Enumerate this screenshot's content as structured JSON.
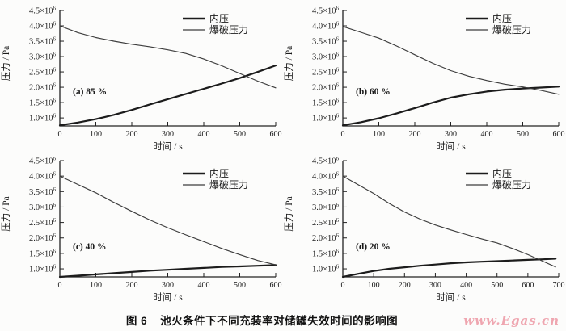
{
  "figure": {
    "background": "#fcfcfb"
  },
  "caption": {
    "label": "图 6",
    "title": "池火条件下不同充装率对储罐失效时间的影响图"
  },
  "watermark": {
    "text": "www.Egas.cn",
    "color": "#efa6b0"
  },
  "chart_data": [
    {
      "id": "a",
      "type": "line",
      "subplot_label": "(a) 85 %",
      "xlabel": "时间 / s",
      "ylabel": "压力 / Pa",
      "y_unit": "10^6 Pa",
      "xlim": [
        0,
        600
      ],
      "ylim": [
        0.74,
        4.5
      ],
      "xticks": [
        0,
        100,
        200,
        300,
        400,
        500,
        600
      ],
      "yticks": [
        1.0,
        1.5,
        2.0,
        2.5,
        3.0,
        3.5,
        4.0,
        4.5
      ],
      "legend_position": "top-right-inside",
      "series": [
        {
          "name": "内压",
          "color": "#1c1c1c",
          "x": [
            0,
            50,
            100,
            150,
            200,
            250,
            300,
            350,
            400,
            450,
            500,
            550,
            600
          ],
          "y": [
            0.76,
            0.85,
            0.96,
            1.1,
            1.26,
            1.44,
            1.61,
            1.78,
            1.95,
            2.12,
            2.3,
            2.5,
            2.71
          ]
        },
        {
          "name": "爆破压力",
          "color": "#3c3c3c",
          "x": [
            0,
            50,
            100,
            150,
            200,
            250,
            300,
            350,
            400,
            450,
            500,
            550,
            600
          ],
          "y": [
            4.0,
            3.78,
            3.62,
            3.5,
            3.4,
            3.32,
            3.22,
            3.1,
            2.92,
            2.7,
            2.45,
            2.2,
            1.98
          ]
        }
      ]
    },
    {
      "id": "b",
      "type": "line",
      "subplot_label": "(b) 60 %",
      "xlabel": "时间 / s",
      "ylabel": "压力 / Pa",
      "y_unit": "10^6 Pa",
      "xlim": [
        0,
        600
      ],
      "ylim": [
        0.74,
        4.5
      ],
      "xticks": [
        0,
        100,
        200,
        300,
        400,
        500,
        600
      ],
      "yticks": [
        1.0,
        1.5,
        2.0,
        2.5,
        3.0,
        3.5,
        4.0,
        4.5
      ],
      "legend_position": "top-right-inside",
      "series": [
        {
          "name": "内压",
          "color": "#1c1c1c",
          "x": [
            0,
            50,
            100,
            150,
            200,
            250,
            300,
            350,
            400,
            450,
            500,
            550,
            600
          ],
          "y": [
            0.76,
            0.86,
            0.99,
            1.15,
            1.32,
            1.5,
            1.66,
            1.77,
            1.86,
            1.92,
            1.96,
            1.99,
            2.02
          ]
        },
        {
          "name": "爆破压力",
          "color": "#3c3c3c",
          "x": [
            0,
            50,
            100,
            150,
            200,
            250,
            300,
            350,
            400,
            450,
            500,
            550,
            600
          ],
          "y": [
            3.98,
            3.79,
            3.6,
            3.34,
            3.06,
            2.78,
            2.54,
            2.36,
            2.22,
            2.1,
            2.01,
            1.9,
            1.77
          ]
        }
      ]
    },
    {
      "id": "c",
      "type": "line",
      "subplot_label": "(c) 40 %",
      "xlabel": "时间 / s",
      "ylabel": "压力 / Pa",
      "y_unit": "10^6 Pa",
      "xlim": [
        0,
        600
      ],
      "ylim": [
        0.74,
        4.5
      ],
      "xticks": [
        0,
        100,
        200,
        300,
        400,
        500,
        600
      ],
      "yticks": [
        1.0,
        1.5,
        2.0,
        2.5,
        3.0,
        3.5,
        4.0,
        4.5
      ],
      "legend_position": "top-right-inside",
      "series": [
        {
          "name": "内压",
          "color": "#1c1c1c",
          "x": [
            0,
            50,
            100,
            150,
            200,
            250,
            300,
            350,
            400,
            450,
            500,
            550,
            600
          ],
          "y": [
            0.74,
            0.78,
            0.82,
            0.86,
            0.9,
            0.94,
            0.97,
            1.0,
            1.03,
            1.06,
            1.08,
            1.1,
            1.12
          ]
        },
        {
          "name": "爆破压力",
          "color": "#3c3c3c",
          "x": [
            0,
            50,
            100,
            150,
            200,
            250,
            300,
            350,
            400,
            450,
            500,
            550,
            600
          ],
          "y": [
            4.0,
            3.73,
            3.46,
            3.15,
            2.86,
            2.58,
            2.33,
            2.1,
            1.88,
            1.66,
            1.46,
            1.27,
            1.13
          ]
        }
      ]
    },
    {
      "id": "d",
      "type": "line",
      "subplot_label": "(d) 20 %",
      "xlabel": "时间 / s",
      "ylabel": "压力 / Pa",
      "y_unit": "10^6 Pa",
      "xlim": [
        0,
        700
      ],
      "ylim": [
        0.74,
        4.5
      ],
      "xticks": [
        0,
        100,
        200,
        300,
        400,
        500,
        600,
        700
      ],
      "yticks": [
        1.0,
        1.5,
        2.0,
        2.5,
        3.0,
        3.5,
        4.0,
        4.5
      ],
      "legend_position": "top-right-inside",
      "series": [
        {
          "name": "内压",
          "color": "#1c1c1c",
          "x": [
            0,
            50,
            100,
            150,
            200,
            250,
            300,
            350,
            400,
            450,
            500,
            550,
            600,
            650,
            690
          ],
          "y": [
            0.74,
            0.84,
            0.93,
            1.0,
            1.05,
            1.1,
            1.14,
            1.18,
            1.21,
            1.23,
            1.25,
            1.27,
            1.29,
            1.31,
            1.33
          ]
        },
        {
          "name": "爆破压力",
          "color": "#3c3c3c",
          "x": [
            0,
            50,
            100,
            150,
            200,
            250,
            300,
            350,
            400,
            450,
            500,
            550,
            600,
            650,
            690
          ],
          "y": [
            4.0,
            3.72,
            3.44,
            3.12,
            2.84,
            2.61,
            2.42,
            2.26,
            2.11,
            1.97,
            1.84,
            1.66,
            1.46,
            1.24,
            1.06
          ]
        }
      ]
    }
  ]
}
